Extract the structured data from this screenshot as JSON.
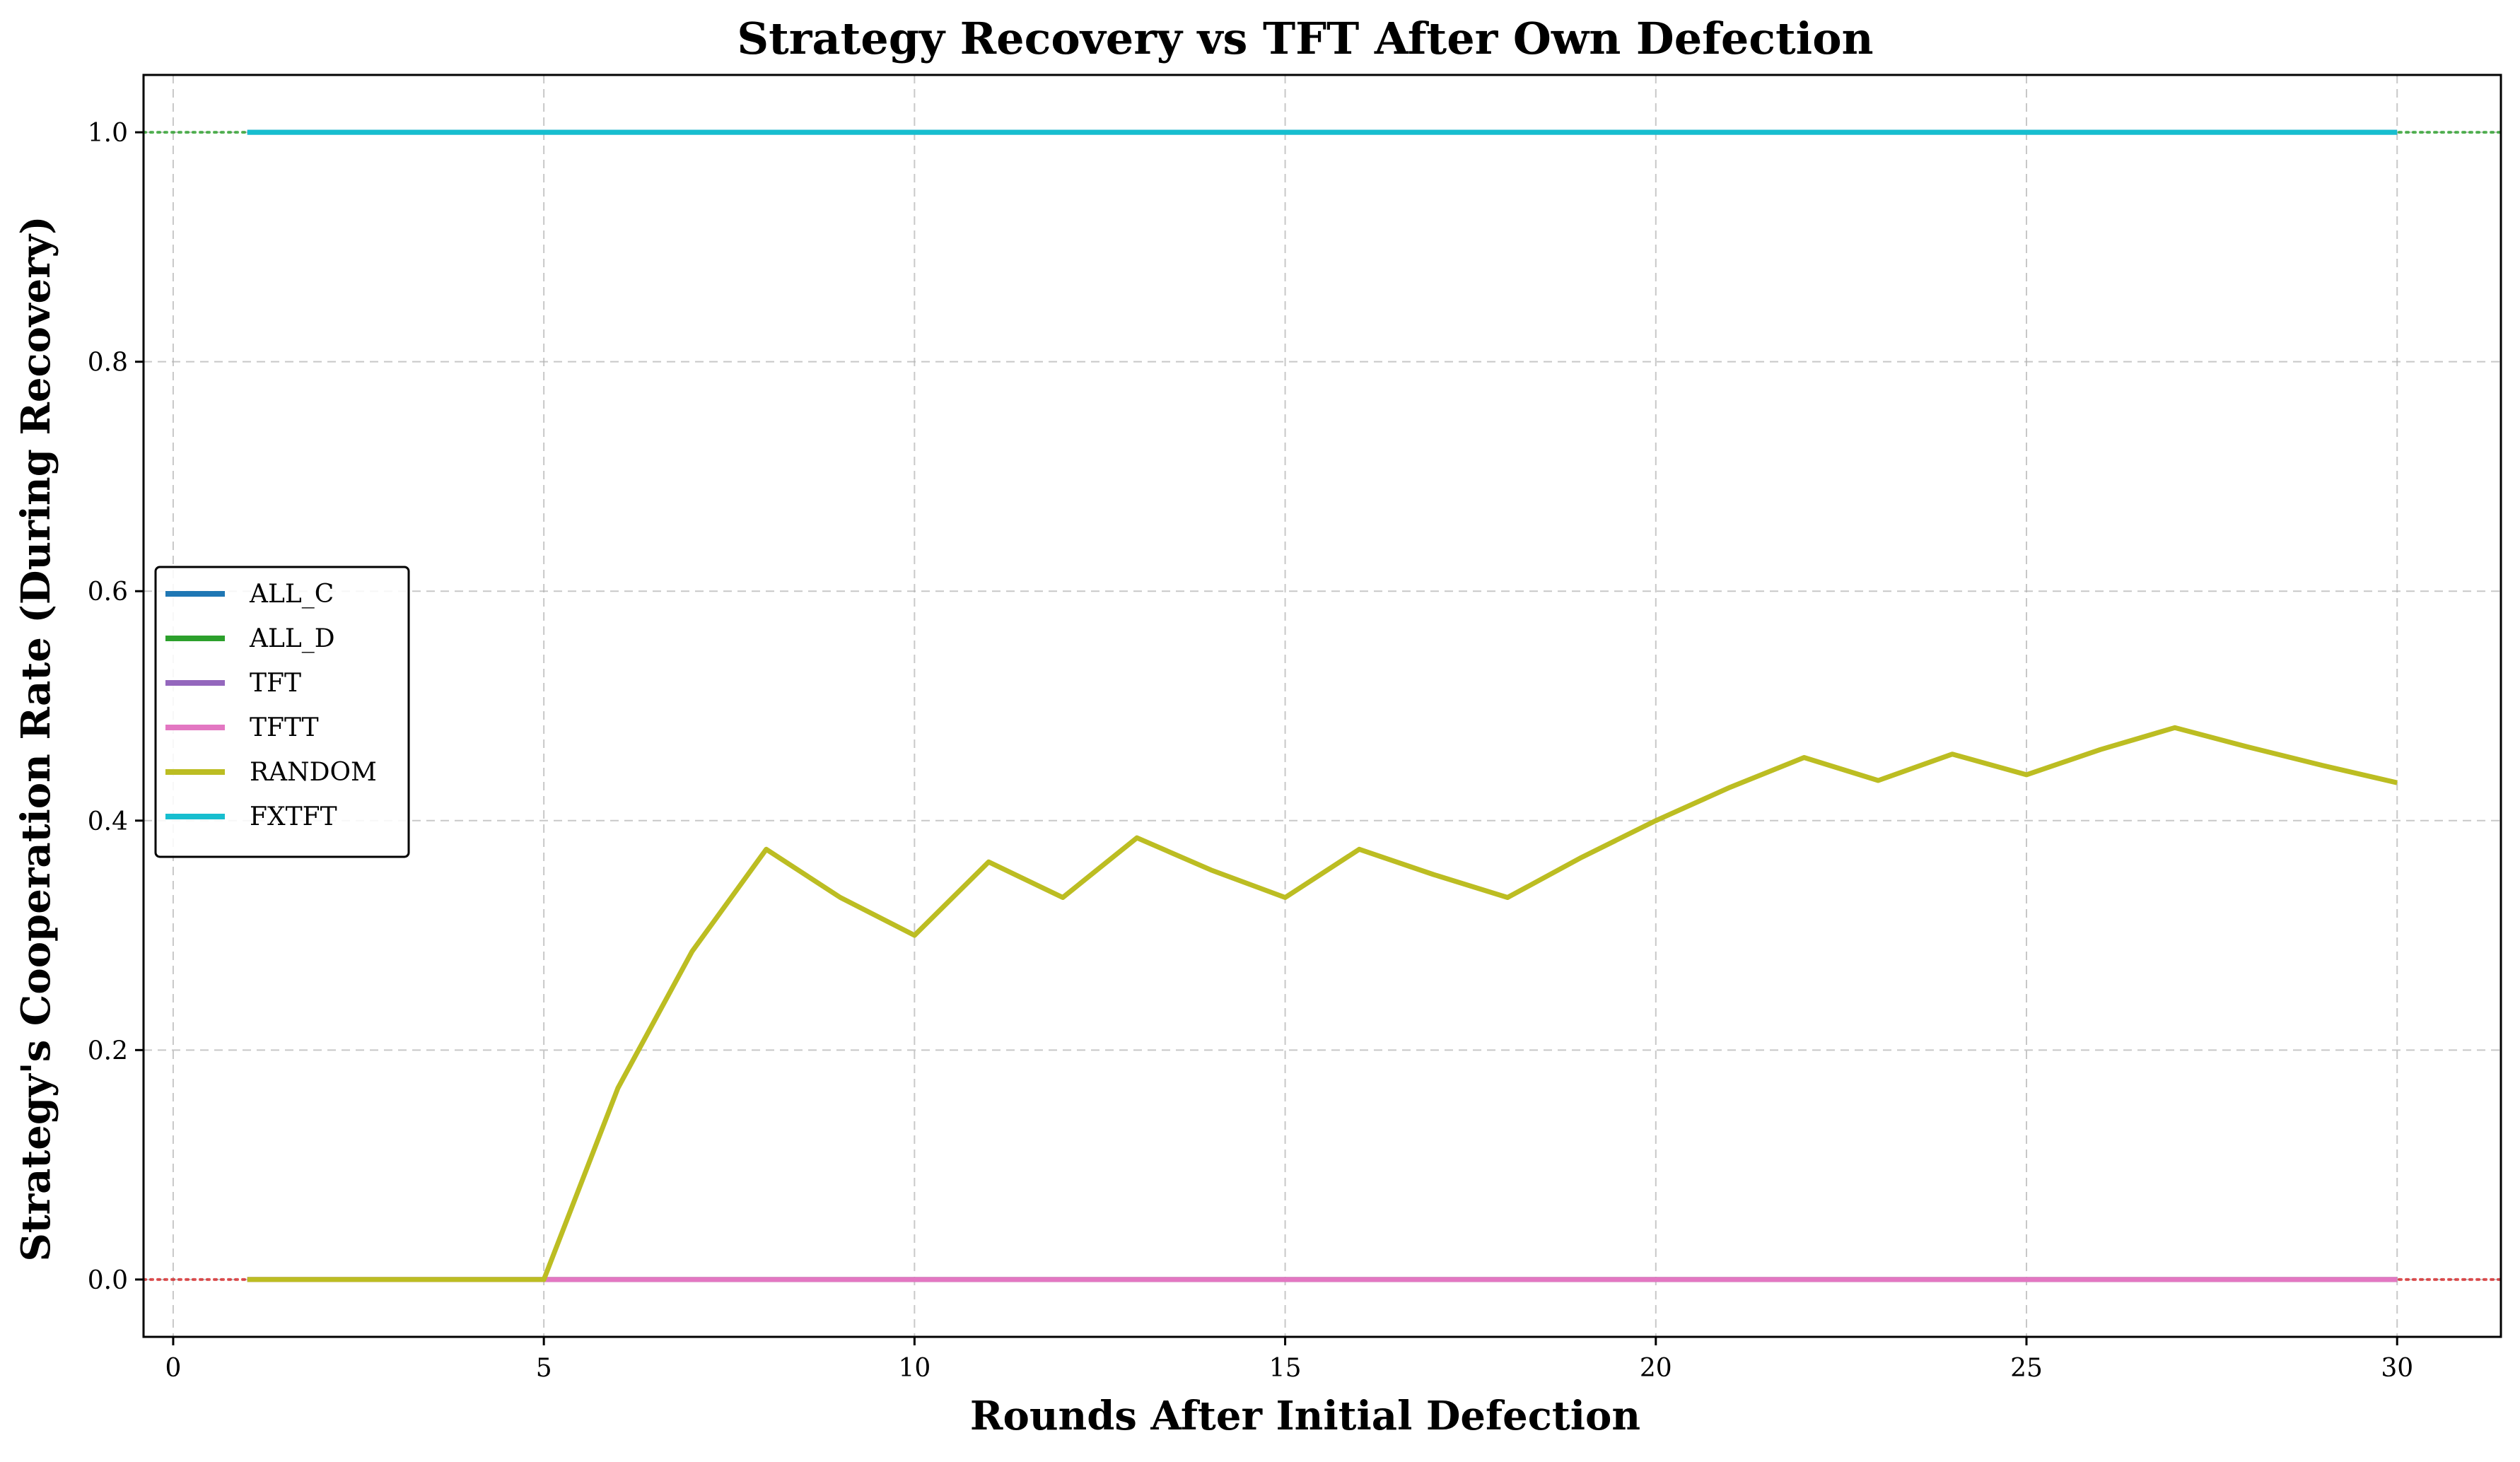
{
  "chart_data": {
    "type": "line",
    "title": "Strategy Recovery vs TFT After Own Defection",
    "xlabel": "Rounds After Initial Defection",
    "ylabel": "Strategy's Cooperation Rate (During Recovery)",
    "xlim": [
      -0.4,
      31.4
    ],
    "ylim": [
      -0.05,
      1.05
    ],
    "xticks": [
      0,
      5,
      10,
      15,
      20,
      25,
      30
    ],
    "yticks": [
      0.0,
      0.2,
      0.4,
      0.6,
      0.8,
      1.0
    ],
    "grid": true,
    "legend_position": "center-left",
    "reference_lines": [
      {
        "y": 1.0,
        "color": "#2ca02c",
        "style": "dotted"
      },
      {
        "y": 0.0,
        "color": "#d62728",
        "style": "dotted"
      }
    ],
    "x": [
      1,
      2,
      3,
      4,
      5,
      6,
      7,
      8,
      9,
      10,
      11,
      12,
      13,
      14,
      15,
      16,
      17,
      18,
      19,
      20,
      21,
      22,
      23,
      24,
      25,
      26,
      27,
      28,
      29,
      30
    ],
    "series": [
      {
        "name": "ALL_C",
        "color": "#1f77b4",
        "values": [
          1,
          1,
          1,
          1,
          1,
          1,
          1,
          1,
          1,
          1,
          1,
          1,
          1,
          1,
          1,
          1,
          1,
          1,
          1,
          1,
          1,
          1,
          1,
          1,
          1,
          1,
          1,
          1,
          1,
          1
        ]
      },
      {
        "name": "ALL_D",
        "color": "#2ca02c",
        "values": [
          0,
          0,
          0,
          0,
          0,
          0,
          0,
          0,
          0,
          0,
          0,
          0,
          0,
          0,
          0,
          0,
          0,
          0,
          0,
          0,
          0,
          0,
          0,
          0,
          0,
          0,
          0,
          0,
          0,
          0
        ]
      },
      {
        "name": "TFT",
        "color": "#9467bd",
        "values": [
          0,
          0,
          0,
          0,
          0,
          0,
          0,
          0,
          0,
          0,
          0,
          0,
          0,
          0,
          0,
          0,
          0,
          0,
          0,
          0,
          0,
          0,
          0,
          0,
          0,
          0,
          0,
          0,
          0,
          0
        ]
      },
      {
        "name": "TFTT",
        "color": "#e377c2",
        "values": [
          0,
          0,
          0,
          0,
          0,
          0,
          0,
          0,
          0,
          0,
          0,
          0,
          0,
          0,
          0,
          0,
          0,
          0,
          0,
          0,
          0,
          0,
          0,
          0,
          0,
          0,
          0,
          0,
          0,
          0
        ]
      },
      {
        "name": "RANDOM",
        "color": "#bcbd22",
        "values": [
          0,
          0,
          0,
          0,
          0,
          0.167,
          0.286,
          0.375,
          0.333,
          0.3,
          0.364,
          0.333,
          0.385,
          0.357,
          0.333,
          0.375,
          0.353,
          0.333,
          0.368,
          0.4,
          0.429,
          0.455,
          0.435,
          0.458,
          0.44,
          0.462,
          0.481,
          0.464,
          0.448,
          0.433
        ]
      },
      {
        "name": "FXTFT",
        "color": "#17becf",
        "values": [
          1,
          1,
          1,
          1,
          1,
          1,
          1,
          1,
          1,
          1,
          1,
          1,
          1,
          1,
          1,
          1,
          1,
          1,
          1,
          1,
          1,
          1,
          1,
          1,
          1,
          1,
          1,
          1,
          1,
          1
        ]
      }
    ]
  }
}
